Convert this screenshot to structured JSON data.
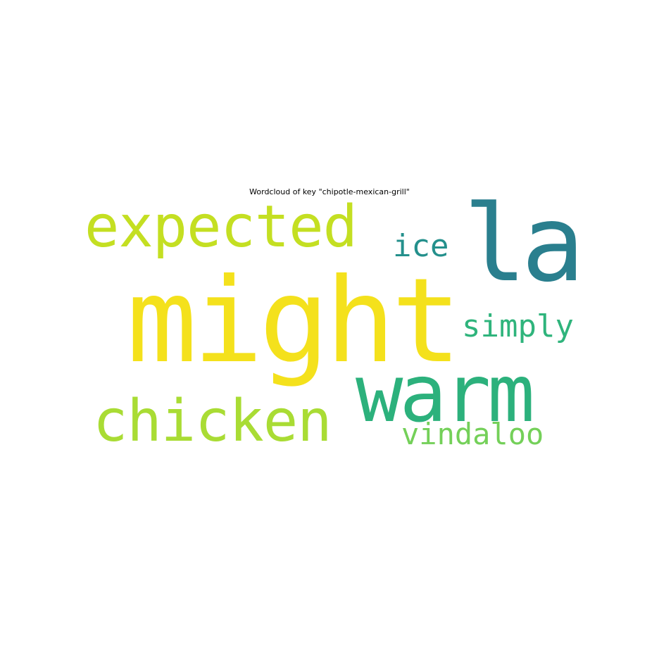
{
  "title": "Wordcloud of key \"chipotle-mexican-grill\"",
  "words": [
    {
      "text": "might",
      "color": "#f4e11c"
    },
    {
      "text": "la",
      "color": "#2a7f8e"
    },
    {
      "text": "expected",
      "color": "#c4df22"
    },
    {
      "text": "warm",
      "color": "#2cb17c"
    },
    {
      "text": "chicken",
      "color": "#a9dc34"
    },
    {
      "text": "ice",
      "color": "#24908c"
    },
    {
      "text": "simply",
      "color": "#2fb47c"
    },
    {
      "text": "vindaloo",
      "color": "#74d059"
    }
  ]
}
